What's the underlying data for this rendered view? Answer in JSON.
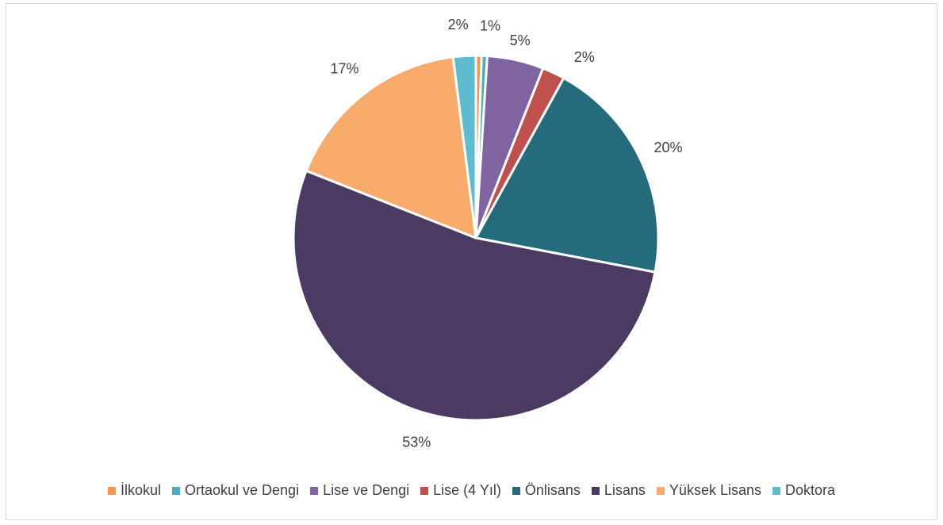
{
  "chart_data": {
    "type": "pie",
    "title": "",
    "categories": [
      "İlkokul",
      "Ortaokul ve Dengi",
      "Lise ve Dengi",
      "Lise (4 Yıl)",
      "Önlisans",
      "Lisans",
      "Yüksek Lisans",
      "Doktora"
    ],
    "values": [
      0.5,
      0.5,
      5,
      2,
      20,
      53,
      17,
      2
    ],
    "data_labels": [
      "",
      "1%",
      "5%",
      "2%",
      "20%",
      "53%",
      "17%",
      "2%"
    ],
    "colors": [
      "#f79646",
      "#4bacc6",
      "#8064a2",
      "#c0504d",
      "#246b7b",
      "#4b3a62",
      "#f8ab6a",
      "#5dbccf"
    ],
    "legend_position": "bottom"
  }
}
